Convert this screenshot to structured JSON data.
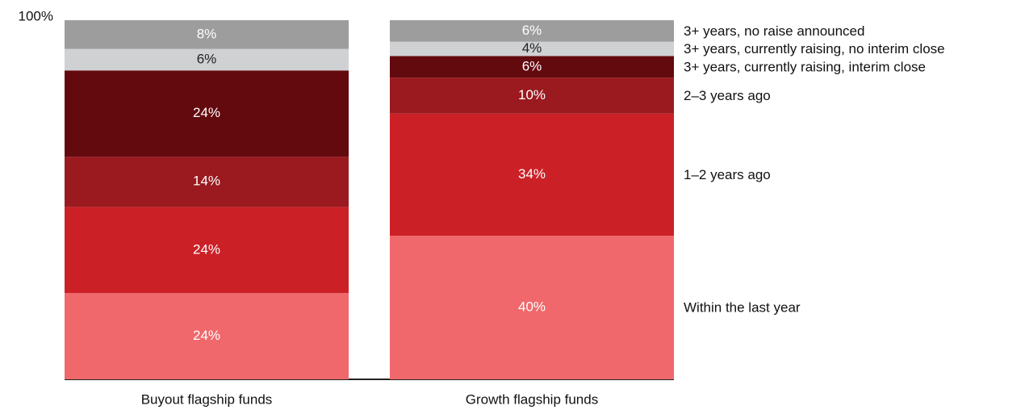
{
  "chart_data": {
    "type": "stacked_bar",
    "categories": [
      "Buyout flagship funds",
      "Growth flagship funds"
    ],
    "ylim": [
      0,
      100
    ],
    "yticks": [
      {
        "value": 100,
        "label": "100%"
      }
    ],
    "series": [
      {
        "name": "Within the last year",
        "color": "#f0686b",
        "label_color": "#ffffff",
        "values": [
          24,
          40
        ],
        "value_labels": [
          "24%",
          "40%"
        ]
      },
      {
        "name": "1–2 years ago",
        "color": "#cc2027",
        "label_color": "#ffffff",
        "values": [
          24,
          34
        ],
        "value_labels": [
          "24%",
          "34%"
        ]
      },
      {
        "name": "2–3 years ago",
        "color": "#9a1a1f",
        "label_color": "#ffffff",
        "values": [
          14,
          10
        ],
        "value_labels": [
          "14%",
          "10%"
        ]
      },
      {
        "name": "3+ years, currently raising, interim close",
        "color": "#630a0f",
        "label_color": "#ffffff",
        "values": [
          24,
          6
        ],
        "value_labels": [
          "24%",
          "6%"
        ]
      },
      {
        "name": "3+ years, currently raising, no interim close",
        "color": "#d0d1d3",
        "label_color": "#222222",
        "values": [
          6,
          4
        ],
        "value_labels": [
          "6%",
          "4%"
        ]
      },
      {
        "name": "3+ years, no raise announced",
        "color": "#9d9d9d",
        "label_color": "#ffffff",
        "values": [
          8,
          6
        ],
        "value_labels": [
          "8%",
          "6%"
        ]
      }
    ]
  }
}
